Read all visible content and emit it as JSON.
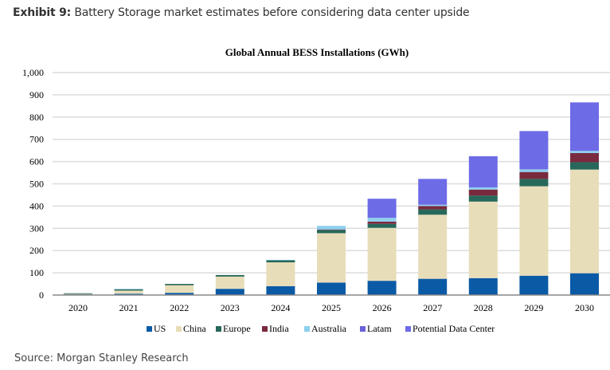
{
  "header": {
    "exhibit_label": "Exhibit 9:",
    "exhibit_text": " Battery Storage market estimates before considering data center upside"
  },
  "footer": {
    "source": "Source: Morgan Stanley Research"
  },
  "chart_data": {
    "type": "bar",
    "stacked": true,
    "title": "Global Annual BESS Installations (GWh)",
    "xlabel": "",
    "ylabel": "",
    "ylim": [
      0,
      1000
    ],
    "yticks": [
      0,
      100,
      200,
      300,
      400,
      500,
      600,
      700,
      800,
      900,
      1000
    ],
    "ytick_labels": [
      "0",
      "100",
      "200",
      "300",
      "400",
      "500",
      "600",
      "700",
      "800",
      "900",
      "1,000"
    ],
    "grid": true,
    "legend_position": "bottom",
    "categories": [
      "2020",
      "2021",
      "2022",
      "2023",
      "2024",
      "2025",
      "2026",
      "2027",
      "2028",
      "2029",
      "2030"
    ],
    "series": [
      {
        "name": "US",
        "color": "#0a5aa6",
        "values": [
          3,
          6,
          10,
          28,
          40,
          56,
          64,
          73,
          76,
          87,
          98
        ]
      },
      {
        "name": "China",
        "color": "#e8ddb9",
        "values": [
          2,
          14,
          34,
          55,
          107,
          222,
          238,
          288,
          344,
          402,
          466
        ]
      },
      {
        "name": "Europe",
        "color": "#27685a",
        "values": [
          3,
          6,
          6,
          7,
          10,
          15,
          18,
          24,
          27,
          33,
          33
        ]
      },
      {
        "name": "India",
        "color": "#7a2a3e",
        "values": [
          0,
          0,
          0,
          0,
          0,
          2,
          10,
          15,
          27,
          31,
          41
        ]
      },
      {
        "name": "Australia",
        "color": "#8fcfee",
        "values": [
          0,
          2,
          0,
          0,
          1,
          16,
          17,
          6,
          10,
          12,
          10
        ]
      },
      {
        "name": "Latam",
        "color": "#6a62d6",
        "values": [
          0,
          0,
          0,
          0,
          0,
          0,
          0,
          0,
          0,
          0,
          0
        ]
      },
      {
        "name": "Potential Data Center",
        "color": "#6d6be6",
        "values": [
          0,
          0,
          0,
          0,
          0,
          0,
          86,
          116,
          140,
          172,
          218
        ]
      }
    ]
  }
}
